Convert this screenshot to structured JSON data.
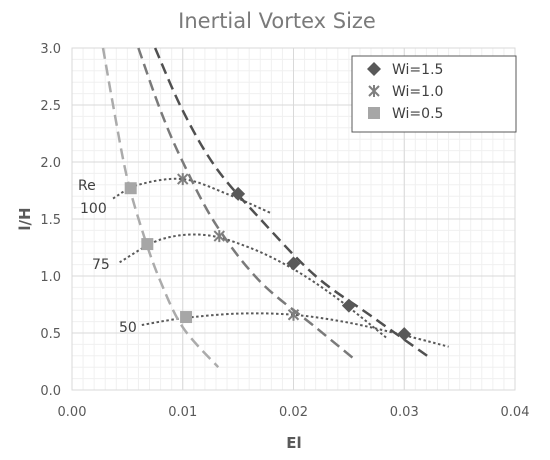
{
  "chart_data": {
    "type": "scatter",
    "title": "Inertial Vortex Size",
    "xlabel": "El",
    "ylabel": "l/H",
    "xlim": [
      0,
      0.04
    ],
    "ylim": [
      0,
      3.0
    ],
    "x_ticks": [
      "0.00",
      "0.01",
      "0.02",
      "0.03",
      "0.04"
    ],
    "y_ticks": [
      "0.0",
      "0.5",
      "1.0",
      "1.5",
      "2.0",
      "2.5",
      "3.0"
    ],
    "grid": true,
    "legend_position": "top-right",
    "series": [
      {
        "name": "Wi=1.5",
        "marker": "diamond",
        "color": "#595959",
        "points": [
          [
            0.015,
            1.72
          ],
          [
            0.02,
            1.11
          ],
          [
            0.025,
            0.74
          ],
          [
            0.03,
            0.49
          ]
        ],
        "trend": [
          [
            0.0075,
            3.0
          ],
          [
            0.01,
            2.45
          ],
          [
            0.013,
            1.95
          ],
          [
            0.017,
            1.5
          ],
          [
            0.022,
            1.0
          ],
          [
            0.027,
            0.65
          ],
          [
            0.0325,
            0.27
          ]
        ],
        "trend_color": "#505050"
      },
      {
        "name": "Wi=1.0",
        "marker": "x",
        "color": "#7f7f7f",
        "points": [
          [
            0.01,
            1.85
          ],
          [
            0.0133,
            1.35
          ],
          [
            0.02,
            0.66
          ]
        ],
        "trend": [
          [
            0.006,
            3.0
          ],
          [
            0.008,
            2.45
          ],
          [
            0.01,
            2.0
          ],
          [
            0.013,
            1.45
          ],
          [
            0.017,
            0.95
          ],
          [
            0.022,
            0.55
          ],
          [
            0.0255,
            0.27
          ]
        ],
        "trend_color": "#7a7a7a"
      },
      {
        "name": "Wi=0.5",
        "marker": "square",
        "color": "#a6a6a6",
        "points": [
          [
            0.0053,
            1.77
          ],
          [
            0.0068,
            1.28
          ],
          [
            0.0103,
            0.64
          ]
        ],
        "trend": [
          [
            0.0028,
            3.0
          ],
          [
            0.0038,
            2.45
          ],
          [
            0.005,
            1.85
          ],
          [
            0.0065,
            1.35
          ],
          [
            0.008,
            0.95
          ],
          [
            0.01,
            0.55
          ],
          [
            0.0132,
            0.2
          ]
        ],
        "trend_color": "#ababab"
      }
    ],
    "re_curves": [
      {
        "label": "100",
        "points": [
          [
            0.0037,
            1.68
          ],
          [
            0.006,
            1.8
          ],
          [
            0.01,
            1.85
          ],
          [
            0.014,
            1.72
          ],
          [
            0.018,
            1.55
          ]
        ]
      },
      {
        "label": "75",
        "points": [
          [
            0.0043,
            1.12
          ],
          [
            0.008,
            1.32
          ],
          [
            0.012,
            1.36
          ],
          [
            0.016,
            1.25
          ],
          [
            0.02,
            1.06
          ],
          [
            0.024,
            0.8
          ],
          [
            0.0285,
            0.45
          ]
        ]
      },
      {
        "label": "50",
        "points": [
          [
            0.0063,
            0.57
          ],
          [
            0.01,
            0.63
          ],
          [
            0.015,
            0.67
          ],
          [
            0.02,
            0.66
          ],
          [
            0.025,
            0.59
          ],
          [
            0.03,
            0.48
          ],
          [
            0.034,
            0.38
          ]
        ]
      }
    ],
    "annotations": [
      "Re",
      "100",
      "75",
      "50"
    ]
  }
}
